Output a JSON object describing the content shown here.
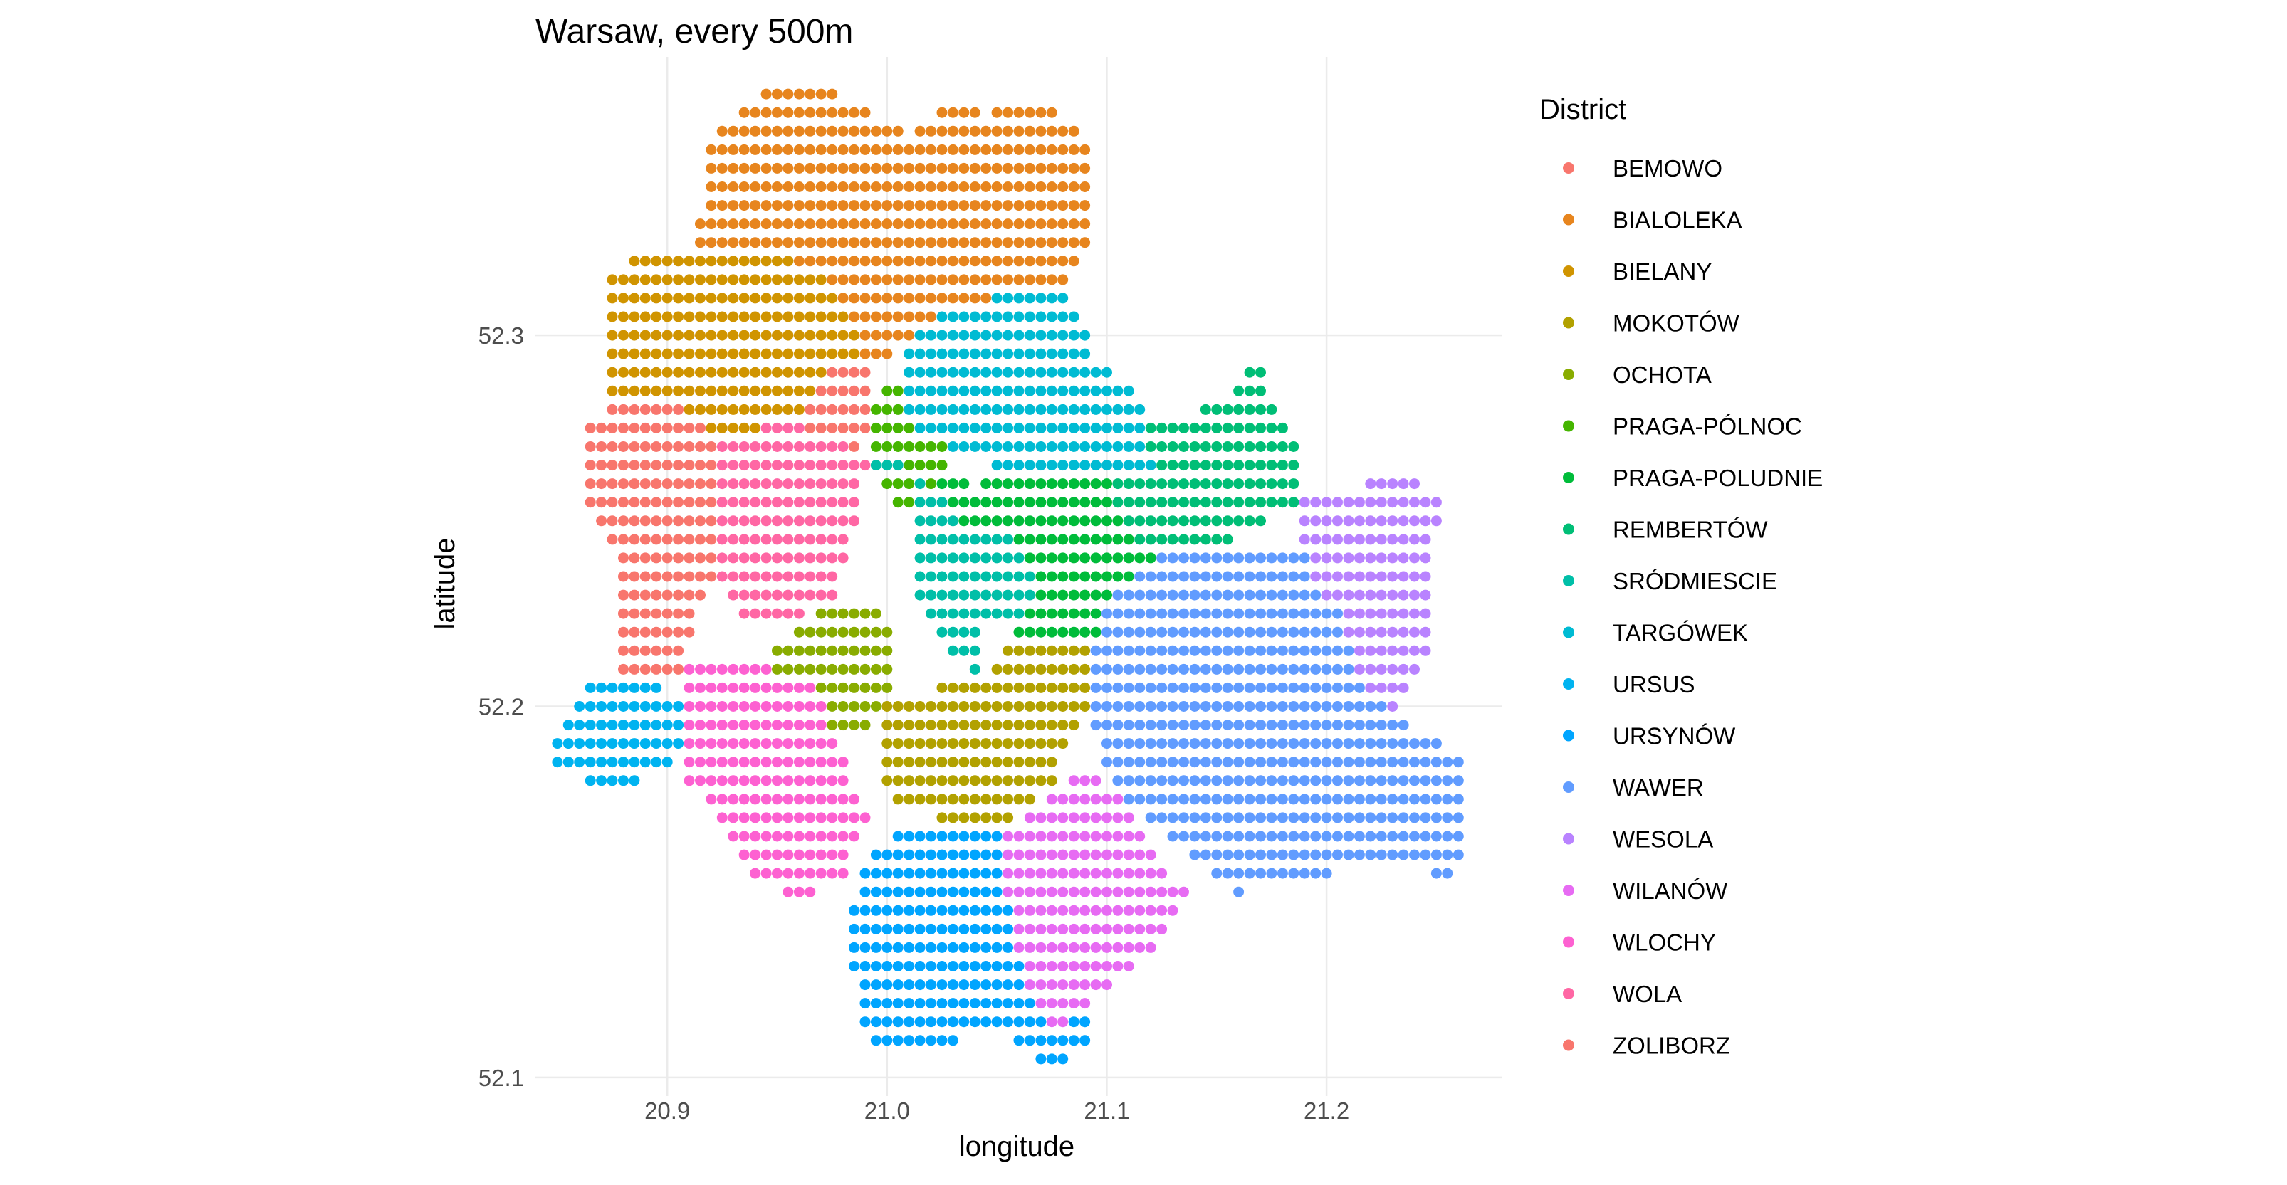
{
  "chart_data": {
    "type": "scatter",
    "title": "Warsaw, every 500m",
    "xlabel": "longitude",
    "ylabel": "latitude",
    "xlim": [
      20.84,
      21.28
    ],
    "ylim": [
      52.095,
      52.375
    ],
    "x_ticks": [
      20.9,
      21.0,
      21.1,
      21.2
    ],
    "x_tick_labels": [
      "20.9",
      "21.0",
      "21.1",
      "21.2"
    ],
    "y_ticks": [
      52.1,
      52.2,
      52.3
    ],
    "y_tick_labels": [
      "52.1",
      "52.2",
      "52.3"
    ],
    "grid": true,
    "grid_spacing_deg": 0.005,
    "legend_position": "right",
    "legend_title": "District",
    "districts": [
      {
        "name": "BEMOWO",
        "color": "#F8766D",
        "region": [
          [
            20.862,
            52.275
          ],
          [
            20.885,
            52.285
          ],
          [
            20.93,
            52.285
          ],
          [
            20.93,
            52.25
          ],
          [
            20.905,
            52.21
          ],
          [
            20.875,
            52.21
          ],
          [
            20.88,
            52.24
          ],
          [
            20.862,
            52.255
          ]
        ]
      },
      {
        "name": "BIALOLEKA",
        "color": "#E7851E",
        "region": [
          [
            20.913,
            52.325
          ],
          [
            20.918,
            52.35
          ],
          [
            20.93,
            52.36
          ],
          [
            20.95,
            52.368
          ],
          [
            20.965,
            52.368
          ],
          [
            20.995,
            52.36
          ],
          [
            21.01,
            52.355
          ],
          [
            21.025,
            52.362
          ],
          [
            21.045,
            52.36
          ],
          [
            21.07,
            52.365
          ],
          [
            21.09,
            52.355
          ],
          [
            21.092,
            52.325
          ],
          [
            21.097,
            52.323
          ],
          [
            21.085,
            52.32
          ],
          [
            21.08,
            52.31
          ],
          [
            21.06,
            52.31
          ],
          [
            21.04,
            52.305
          ],
          [
            21.015,
            52.3
          ],
          [
            20.99,
            52.29
          ],
          [
            20.97,
            52.3
          ],
          [
            20.94,
            52.325
          ]
        ]
      },
      {
        "name": "BIELANY",
        "color": "#D09400",
        "region": [
          [
            20.872,
            52.315
          ],
          [
            20.88,
            52.32
          ],
          [
            20.897,
            52.325
          ],
          [
            20.912,
            52.325
          ],
          [
            20.945,
            52.325
          ],
          [
            20.975,
            52.315
          ],
          [
            20.99,
            52.3
          ],
          [
            20.982,
            52.29
          ],
          [
            20.96,
            52.275
          ],
          [
            20.93,
            52.27
          ],
          [
            20.91,
            52.28
          ],
          [
            20.872,
            52.285
          ]
        ]
      },
      {
        "name": "MOKOTÓW",
        "color": "#B2A100",
        "region": [
          [
            20.995,
            52.21
          ],
          [
            21.0,
            52.175
          ],
          [
            21.03,
            52.168
          ],
          [
            21.05,
            52.168
          ],
          [
            21.075,
            52.178
          ],
          [
            21.087,
            52.195
          ],
          [
            21.1,
            52.205
          ],
          [
            21.095,
            52.225
          ],
          [
            21.07,
            52.225
          ],
          [
            21.045,
            52.21
          ],
          [
            21.02,
            52.205
          ],
          [
            20.995,
            52.205
          ]
        ]
      },
      {
        "name": "OCHOTA",
        "color": "#89AC00",
        "region": [
          [
            20.92,
            52.21
          ],
          [
            20.94,
            52.21
          ],
          [
            20.96,
            52.222
          ],
          [
            20.985,
            52.23
          ],
          [
            21.0,
            52.225
          ],
          [
            21.0,
            52.205
          ],
          [
            20.99,
            52.195
          ],
          [
            20.96,
            52.195
          ],
          [
            20.935,
            52.2
          ],
          [
            20.92,
            52.2
          ]
        ]
      },
      {
        "name": "PRAGA-PÓLNOC",
        "color": "#45B500",
        "region": [
          [
            20.995,
            52.285
          ],
          [
            21.02,
            52.29
          ],
          [
            21.03,
            52.285
          ],
          [
            21.03,
            52.27
          ],
          [
            21.022,
            52.255
          ],
          [
            21.005,
            52.255
          ],
          [
            20.99,
            52.268
          ]
        ]
      },
      {
        "name": "PRAGA-POLUDNIE",
        "color": "#00BC3A",
        "region": [
          [
            21.02,
            52.265
          ],
          [
            21.04,
            52.26
          ],
          [
            21.065,
            52.265
          ],
          [
            21.09,
            52.262
          ],
          [
            21.12,
            52.258
          ],
          [
            21.125,
            52.24
          ],
          [
            21.11,
            52.225
          ],
          [
            21.09,
            52.218
          ],
          [
            21.06,
            52.22
          ],
          [
            21.035,
            52.232
          ],
          [
            21.02,
            52.245
          ]
        ]
      },
      {
        "name": "REMBERTÓW",
        "color": "#00BE76",
        "region": [
          [
            21.1,
            52.28
          ],
          [
            21.14,
            52.28
          ],
          [
            21.155,
            52.282
          ],
          [
            21.16,
            52.29
          ],
          [
            21.172,
            52.292
          ],
          [
            21.175,
            52.28
          ],
          [
            21.185,
            52.275
          ],
          [
            21.185,
            52.255
          ],
          [
            21.165,
            52.248
          ],
          [
            21.15,
            52.243
          ],
          [
            21.125,
            52.24
          ],
          [
            21.105,
            52.25
          ]
        ]
      },
      {
        "name": "SRÓDMIESCIE",
        "color": "#00BFA8",
        "region": [
          [
            20.98,
            52.255
          ],
          [
            20.99,
            52.262
          ],
          [
            21.01,
            52.262
          ],
          [
            21.015,
            52.25
          ],
          [
            21.01,
            52.23
          ],
          [
            21.03,
            52.215
          ],
          [
            21.04,
            52.21
          ],
          [
            21.045,
            52.222
          ],
          [
            21.06,
            52.225
          ],
          [
            21.07,
            52.23
          ],
          [
            21.06,
            52.245
          ],
          [
            21.035,
            52.248
          ],
          [
            21.02,
            52.26
          ],
          [
            21.0,
            52.27
          ],
          [
            20.985,
            52.265
          ]
        ]
      },
      {
        "name": "TARGÓWEK",
        "color": "#00BBD3",
        "region": [
          [
            21.005,
            52.295
          ],
          [
            21.02,
            52.305
          ],
          [
            21.045,
            52.31
          ],
          [
            21.07,
            52.312
          ],
          [
            21.085,
            52.31
          ],
          [
            21.095,
            52.295
          ],
          [
            21.115,
            52.282
          ],
          [
            21.12,
            52.265
          ],
          [
            21.095,
            52.262
          ],
          [
            21.07,
            52.265
          ],
          [
            21.05,
            52.265
          ],
          [
            21.03,
            52.27
          ],
          [
            21.01,
            52.275
          ]
        ]
      },
      {
        "name": "URSUS",
        "color": "#00B3F0",
        "region": [
          [
            20.85,
            52.195
          ],
          [
            20.86,
            52.205
          ],
          [
            20.885,
            52.21
          ],
          [
            20.9,
            52.205
          ],
          [
            20.915,
            52.195
          ],
          [
            20.9,
            52.185
          ],
          [
            20.885,
            52.18
          ],
          [
            20.865,
            52.18
          ],
          [
            20.85,
            52.185
          ]
        ]
      },
      {
        "name": "URSYNÓW",
        "color": "#00A5FF",
        "region": [
          [
            20.98,
            52.142
          ],
          [
            20.99,
            52.11
          ],
          [
            21.01,
            52.108
          ],
          [
            21.05,
            52.112
          ],
          [
            21.075,
            52.102
          ],
          [
            21.09,
            52.11
          ],
          [
            21.09,
            52.13
          ],
          [
            21.075,
            52.15
          ],
          [
            21.065,
            52.162
          ],
          [
            21.04,
            52.168
          ],
          [
            21.005,
            52.168
          ],
          [
            20.99,
            52.158
          ]
        ]
      },
      {
        "name": "WAWER",
        "color": "#619CFF",
        "region": [
          [
            21.1,
            52.228
          ],
          [
            21.12,
            52.24
          ],
          [
            21.15,
            52.245
          ],
          [
            21.18,
            52.245
          ],
          [
            21.205,
            52.238
          ],
          [
            21.225,
            52.22
          ],
          [
            21.235,
            52.195
          ],
          [
            21.26,
            52.188
          ],
          [
            21.265,
            52.168
          ],
          [
            21.258,
            52.15
          ],
          [
            21.245,
            52.158
          ],
          [
            21.2,
            52.155
          ],
          [
            21.16,
            52.15
          ],
          [
            21.145,
            52.155
          ],
          [
            21.13,
            52.165
          ],
          [
            21.1,
            52.18
          ],
          [
            21.09,
            52.205
          ]
        ]
      },
      {
        "name": "WESOLA",
        "color": "#B983FF",
        "region": [
          [
            21.185,
            52.255
          ],
          [
            21.205,
            52.258
          ],
          [
            21.23,
            52.262
          ],
          [
            21.24,
            52.262
          ],
          [
            21.255,
            52.252
          ],
          [
            21.245,
            52.24
          ],
          [
            21.245,
            52.215
          ],
          [
            21.23,
            52.2
          ],
          [
            21.215,
            52.205
          ],
          [
            21.205,
            52.225
          ],
          [
            21.19,
            52.24
          ]
        ]
      },
      {
        "name": "WILANÓW",
        "color": "#E76BF3",
        "region": [
          [
            21.05,
            52.165
          ],
          [
            21.065,
            52.172
          ],
          [
            21.08,
            52.178
          ],
          [
            21.09,
            52.185
          ],
          [
            21.1,
            52.18
          ],
          [
            21.115,
            52.168
          ],
          [
            21.125,
            52.158
          ],
          [
            21.135,
            52.15
          ],
          [
            21.125,
            52.138
          ],
          [
            21.11,
            52.128
          ],
          [
            21.09,
            52.12
          ],
          [
            21.075,
            52.112
          ],
          [
            21.06,
            52.13
          ],
          [
            21.055,
            52.145
          ]
        ]
      },
      {
        "name": "WLOCHY",
        "color": "#FD61D1",
        "region": [
          [
            20.905,
            52.215
          ],
          [
            20.93,
            52.215
          ],
          [
            20.97,
            52.205
          ],
          [
            20.975,
            52.195
          ],
          [
            20.99,
            52.17
          ],
          [
            20.98,
            52.155
          ],
          [
            20.96,
            52.147
          ],
          [
            20.94,
            52.155
          ],
          [
            20.93,
            52.165
          ],
          [
            20.91,
            52.18
          ],
          [
            20.905,
            52.2
          ]
        ]
      },
      {
        "name": "WOLA",
        "color": "#FF67A4",
        "region": [
          [
            20.92,
            52.27
          ],
          [
            20.94,
            52.275
          ],
          [
            20.96,
            52.28
          ],
          [
            20.97,
            52.29
          ],
          [
            20.985,
            52.285
          ],
          [
            20.99,
            52.265
          ],
          [
            20.985,
            52.25
          ],
          [
            20.975,
            52.23
          ],
          [
            20.955,
            52.222
          ],
          [
            20.935,
            52.225
          ],
          [
            20.92,
            52.24
          ]
        ]
      },
      {
        "name": "ZOLIBORZ",
        "color": "#F8766D",
        "region": [
          [
            20.96,
            52.28
          ],
          [
            20.975,
            52.292
          ],
          [
            20.99,
            52.292
          ],
          [
            20.995,
            52.28
          ],
          [
            20.985,
            52.27
          ],
          [
            20.965,
            52.272
          ]
        ]
      }
    ]
  }
}
